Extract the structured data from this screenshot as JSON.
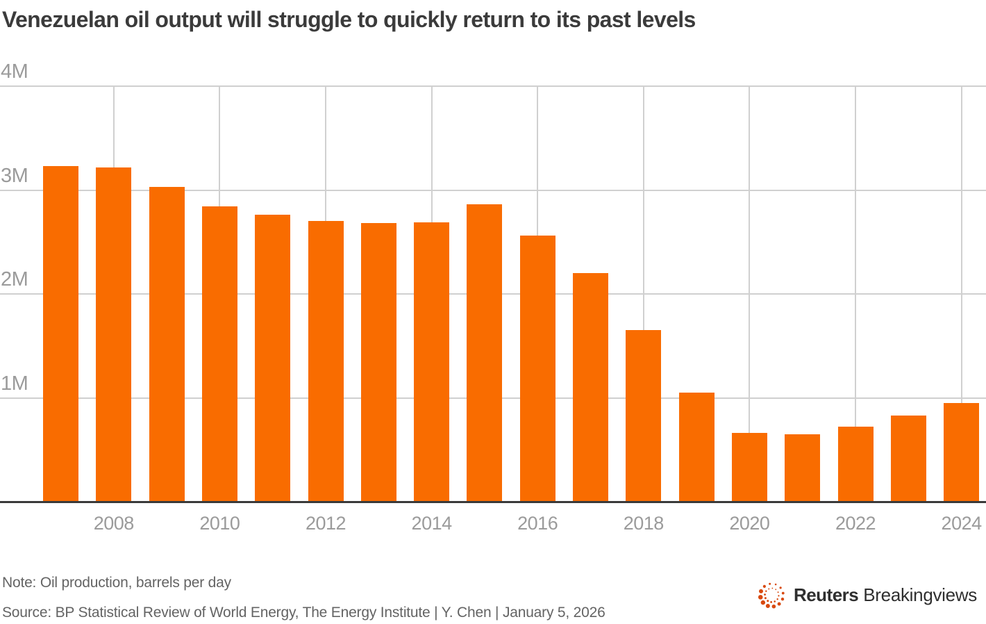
{
  "header": {
    "title": "Venezuelan oil output will struggle to quickly return to its past levels"
  },
  "chart_data": {
    "type": "bar",
    "title": "Venezuelan oil output will struggle to quickly return to its past levels",
    "categories": [
      "2007",
      "2008",
      "2009",
      "2010",
      "2011",
      "2012",
      "2013",
      "2014",
      "2015",
      "2016",
      "2017",
      "2018",
      "2019",
      "2020",
      "2021",
      "2022",
      "2023",
      "2024"
    ],
    "values": [
      3.23,
      3.22,
      3.03,
      2.84,
      2.76,
      2.7,
      2.68,
      2.69,
      2.86,
      2.56,
      2.2,
      1.65,
      1.05,
      0.66,
      0.65,
      0.72,
      0.83,
      0.95
    ],
    "unit": "million barrels per day",
    "xlabel": "",
    "ylabel": "",
    "ylim": [
      0,
      4
    ],
    "y_ticks": [
      {
        "value": 1,
        "label": "1M"
      },
      {
        "value": 2,
        "label": "2M"
      },
      {
        "value": 3,
        "label": "3M"
      },
      {
        "value": 4,
        "label": "4M"
      }
    ],
    "x_ticks": [
      {
        "index": 1,
        "label": "2008"
      },
      {
        "index": 3,
        "label": "2010"
      },
      {
        "index": 5,
        "label": "2012"
      },
      {
        "index": 7,
        "label": "2014"
      },
      {
        "index": 9,
        "label": "2016"
      },
      {
        "index": 11,
        "label": "2018"
      },
      {
        "index": 13,
        "label": "2020"
      },
      {
        "index": 15,
        "label": "2022"
      },
      {
        "index": 17,
        "label": "2024"
      }
    ],
    "grid": true,
    "legend": false
  },
  "footer": {
    "note": "Note: Oil production, barrels per day",
    "source": "Source: BP Statistical Review of World Energy, The Energy Institute | Y. Chen | January 5, 2026",
    "logo": {
      "brand": "Reuters",
      "suffix": "Breakingviews"
    }
  },
  "colors": {
    "background": "#ffffff",
    "bar": "#f96c00",
    "grid": "#d0d0d0",
    "axis": "#3a3a3a",
    "tick_label": "#9b9b9b",
    "title": "#3b3b3b",
    "footnote": "#646464",
    "logo_dots": "#d8490f",
    "logo_text": "#2f2f2f"
  }
}
